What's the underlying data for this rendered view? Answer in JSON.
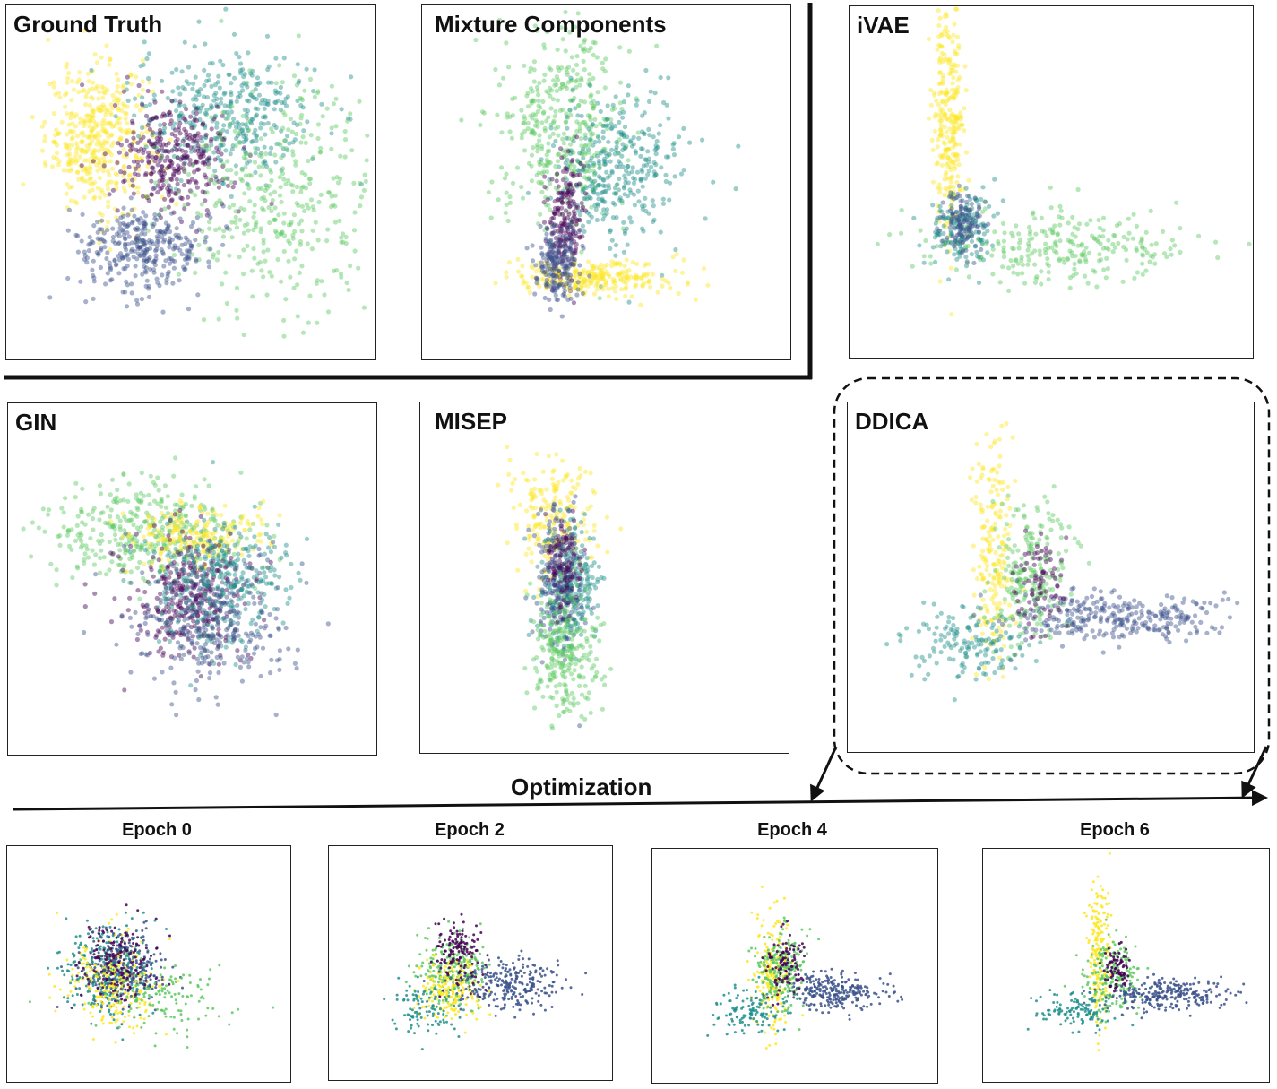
{
  "figure": {
    "optimization_label": "Optimization",
    "colormap": [
      "#440154",
      "#3b528b",
      "#21918c",
      "#5ec962",
      "#fde725"
    ]
  },
  "chart_data": [
    {
      "id": "ground_truth",
      "title": "Ground Truth",
      "type": "scatter",
      "clusters": [
        {
          "color": "#fde725",
          "center": [
            -1.6,
            0.9
          ],
          "spread": [
            0.45,
            0.6
          ],
          "n": 420
        },
        {
          "color": "#21918c",
          "center": [
            0.6,
            1.3
          ],
          "spread": [
            0.8,
            0.55
          ],
          "n": 380
        },
        {
          "color": "#440154",
          "center": [
            -0.3,
            0.6
          ],
          "spread": [
            0.5,
            0.45
          ],
          "n": 320
        },
        {
          "color": "#5ec962",
          "center": [
            1.5,
            -0.1
          ],
          "spread": [
            0.9,
            0.9
          ],
          "n": 380
        },
        {
          "color": "#3b528b",
          "center": [
            -0.8,
            -0.9
          ],
          "spread": [
            0.55,
            0.35
          ],
          "n": 330
        }
      ]
    },
    {
      "id": "mixture_components",
      "title": "Mixture Components",
      "type": "scatter",
      "clusters": [
        {
          "color": "#5ec962",
          "center": [
            -0.8,
            1.1
          ],
          "spread": [
            0.55,
            0.8
          ],
          "n": 400
        },
        {
          "color": "#21918c",
          "center": [
            0.2,
            0.4
          ],
          "spread": [
            0.55,
            0.6
          ],
          "n": 340
        },
        {
          "color": "#440154",
          "center": [
            -0.7,
            -0.4
          ],
          "spread": [
            0.15,
            0.5
          ],
          "n": 200
        },
        {
          "color": "#fde725",
          "center": [
            -0.2,
            -1.4
          ],
          "spread": [
            0.7,
            0.15
          ],
          "n": 260
        },
        {
          "color": "#3b528b",
          "center": [
            -0.85,
            -1.2
          ],
          "spread": [
            0.2,
            0.35
          ],
          "n": 200
        }
      ]
    },
    {
      "id": "ivae",
      "title": "iVAE",
      "type": "scatter",
      "clusters": [
        {
          "color": "#fde725",
          "center": [
            -1.6,
            1.2
          ],
          "spread": [
            0.12,
            1.0
          ],
          "n": 280
        },
        {
          "color": "#5ec962",
          "center": [
            0.2,
            -0.9
          ],
          "spread": [
            1.0,
            0.3
          ],
          "n": 260
        },
        {
          "color": "#21918c",
          "center": [
            -1.45,
            -0.6
          ],
          "spread": [
            0.25,
            0.3
          ],
          "n": 160
        },
        {
          "color": "#3b528b",
          "center": [
            -1.4,
            -0.5
          ],
          "spread": [
            0.15,
            0.25
          ],
          "n": 120
        }
      ]
    },
    {
      "id": "gin",
      "title": "GIN",
      "type": "scatter",
      "clusters": [
        {
          "color": "#5ec962",
          "center": [
            -0.8,
            1.0
          ],
          "spread": [
            0.9,
            0.45
          ],
          "n": 360
        },
        {
          "color": "#fde725",
          "center": [
            0.0,
            0.9
          ],
          "spread": [
            0.6,
            0.25
          ],
          "n": 200
        },
        {
          "color": "#440154",
          "center": [
            -0.1,
            -0.1
          ],
          "spread": [
            0.55,
            0.5
          ],
          "n": 340
        },
        {
          "color": "#21918c",
          "center": [
            0.5,
            0.1
          ],
          "spread": [
            0.6,
            0.55
          ],
          "n": 320
        },
        {
          "color": "#3b528b",
          "center": [
            0.3,
            -0.6
          ],
          "spread": [
            0.7,
            0.6
          ],
          "n": 280
        }
      ]
    },
    {
      "id": "misep",
      "title": "MISEP",
      "type": "scatter",
      "clusters": [
        {
          "color": "#fde725",
          "center": [
            -0.9,
            1.2
          ],
          "spread": [
            0.35,
            0.5
          ],
          "n": 200
        },
        {
          "color": "#21918c",
          "center": [
            -0.6,
            0.1
          ],
          "spread": [
            0.25,
            0.5
          ],
          "n": 260
        },
        {
          "color": "#3b528b",
          "center": [
            -0.8,
            0.2
          ],
          "spread": [
            0.2,
            0.6
          ],
          "n": 220
        },
        {
          "color": "#5ec962",
          "center": [
            -0.7,
            -1.1
          ],
          "spread": [
            0.3,
            0.5
          ],
          "n": 260
        },
        {
          "color": "#440154",
          "center": [
            -0.7,
            0.4
          ],
          "spread": [
            0.15,
            0.4
          ],
          "n": 100
        }
      ]
    },
    {
      "id": "ddica",
      "title": "DDICA",
      "type": "scatter",
      "clusters": [
        {
          "color": "#fde725",
          "center": [
            -0.9,
            0.6
          ],
          "spread": [
            0.15,
            1.1
          ],
          "n": 200
        },
        {
          "color": "#5ec962",
          "center": [
            -0.3,
            0.2
          ],
          "spread": [
            0.3,
            0.6
          ],
          "n": 220
        },
        {
          "color": "#3b528b",
          "center": [
            1.0,
            -0.5
          ],
          "spread": [
            0.9,
            0.2
          ],
          "n": 300
        },
        {
          "color": "#21918c",
          "center": [
            -1.3,
            -0.9
          ],
          "spread": [
            0.5,
            0.3
          ],
          "n": 150
        },
        {
          "color": "#440154",
          "center": [
            -0.2,
            0.1
          ],
          "spread": [
            0.2,
            0.4
          ],
          "n": 80
        }
      ]
    },
    {
      "id": "epoch0",
      "title": "Epoch 0",
      "type": "scatter",
      "clusters": [
        {
          "color": "#21918c",
          "center": [
            -0.9,
            0.1
          ],
          "spread": [
            0.5,
            0.6
          ],
          "n": 320
        },
        {
          "color": "#fde725",
          "center": [
            -0.8,
            -0.2
          ],
          "spread": [
            0.5,
            0.6
          ],
          "n": 280
        },
        {
          "color": "#3b528b",
          "center": [
            -0.6,
            0.2
          ],
          "spread": [
            0.5,
            0.5
          ],
          "n": 240
        },
        {
          "color": "#440154",
          "center": [
            -0.7,
            0.3
          ],
          "spread": [
            0.4,
            0.5
          ],
          "n": 160
        },
        {
          "color": "#5ec962",
          "center": [
            0.4,
            -0.6
          ],
          "spread": [
            0.8,
            0.5
          ],
          "n": 120
        }
      ]
    },
    {
      "id": "epoch2",
      "title": "Epoch 2",
      "type": "scatter",
      "clusters": [
        {
          "color": "#5ec962",
          "center": [
            -0.4,
            0.1
          ],
          "spread": [
            0.4,
            0.5
          ],
          "n": 240
        },
        {
          "color": "#fde725",
          "center": [
            -0.5,
            -0.4
          ],
          "spread": [
            0.35,
            0.4
          ],
          "n": 200
        },
        {
          "color": "#3b528b",
          "center": [
            0.9,
            -0.3
          ],
          "spread": [
            0.6,
            0.35
          ],
          "n": 260
        },
        {
          "color": "#440154",
          "center": [
            -0.3,
            0.6
          ],
          "spread": [
            0.25,
            0.4
          ],
          "n": 140
        },
        {
          "color": "#21918c",
          "center": [
            -1.1,
            -1.0
          ],
          "spread": [
            0.4,
            0.3
          ],
          "n": 100
        }
      ]
    },
    {
      "id": "epoch4",
      "title": "Epoch 4",
      "type": "scatter",
      "clusters": [
        {
          "color": "#fde725",
          "center": [
            -0.5,
            0.1
          ],
          "spread": [
            0.2,
            0.8
          ],
          "n": 200
        },
        {
          "color": "#5ec962",
          "center": [
            -0.3,
            0.2
          ],
          "spread": [
            0.3,
            0.5
          ],
          "n": 220
        },
        {
          "color": "#3b528b",
          "center": [
            0.9,
            -0.4
          ],
          "spread": [
            0.55,
            0.25
          ],
          "n": 260
        },
        {
          "color": "#440154",
          "center": [
            -0.2,
            0.3
          ],
          "spread": [
            0.2,
            0.4
          ],
          "n": 100
        },
        {
          "color": "#21918c",
          "center": [
            -1.1,
            -0.9
          ],
          "spread": [
            0.45,
            0.3
          ],
          "n": 120
        }
      ]
    },
    {
      "id": "epoch6",
      "title": "Epoch 6",
      "type": "scatter",
      "clusters": [
        {
          "color": "#fde725",
          "center": [
            -0.6,
            0.6
          ],
          "spread": [
            0.12,
            1.0
          ],
          "n": 200
        },
        {
          "color": "#5ec962",
          "center": [
            -0.3,
            0.0
          ],
          "spread": [
            0.3,
            0.5
          ],
          "n": 200
        },
        {
          "color": "#3b528b",
          "center": [
            0.9,
            -0.5
          ],
          "spread": [
            0.7,
            0.2
          ],
          "n": 260
        },
        {
          "color": "#440154",
          "center": [
            -0.2,
            0.2
          ],
          "spread": [
            0.15,
            0.3
          ],
          "n": 80
        },
        {
          "color": "#21918c",
          "center": [
            -1.1,
            -0.9
          ],
          "spread": [
            0.4,
            0.25
          ],
          "n": 120
        }
      ]
    }
  ]
}
